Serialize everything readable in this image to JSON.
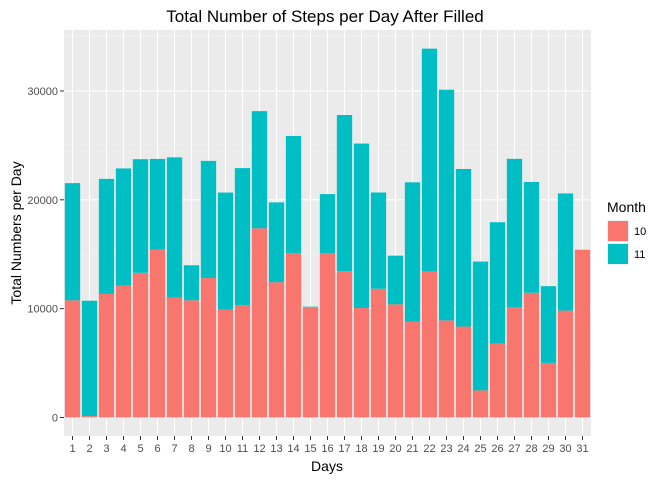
{
  "chart_data": {
    "type": "bar",
    "stacked": true,
    "title": "Total Number of Steps per Day After Filled",
    "xlabel": "Days",
    "ylabel": "Total Numbers per Day",
    "categories": [
      "1",
      "2",
      "3",
      "4",
      "5",
      "6",
      "7",
      "8",
      "9",
      "10",
      "11",
      "12",
      "13",
      "14",
      "15",
      "16",
      "17",
      "18",
      "19",
      "20",
      "21",
      "22",
      "23",
      "24",
      "25",
      "26",
      "27",
      "28",
      "29",
      "30",
      "31"
    ],
    "ylim": [
      -1700,
      35600
    ],
    "yticks": [
      0,
      10000,
      20000,
      30000
    ],
    "ytick_labels": [
      "0",
      "10000",
      "20000",
      "30000"
    ],
    "grid": true,
    "legend": {
      "title": "Month",
      "position": "right"
    },
    "series": [
      {
        "name": "10",
        "color": "#F8766D",
        "values": [
          10766,
          126,
          11352,
          12116,
          13294,
          15420,
          11015,
          10766,
          12811,
          9900,
          10304,
          17382,
          12426,
          15098,
          10139,
          15084,
          13452,
          10056,
          11829,
          10395,
          8821,
          13460,
          8918,
          8355,
          2492,
          6778,
          10119,
          11458,
          5018,
          9819,
          15414
        ]
      },
      {
        "name": "11",
        "color": "#00BFC4",
        "values": [
          10766,
          10600,
          10571,
          10766,
          10439,
          8334,
          12883,
          3219,
          10766,
          10766,
          12608,
          10765,
          7336,
          10766,
          41,
          5441,
          14339,
          15110,
          8841,
          4472,
          12787,
          20427,
          21194,
          14478,
          11834,
          11162,
          13646,
          10183,
          7047,
          10766,
          0
        ]
      }
    ]
  }
}
